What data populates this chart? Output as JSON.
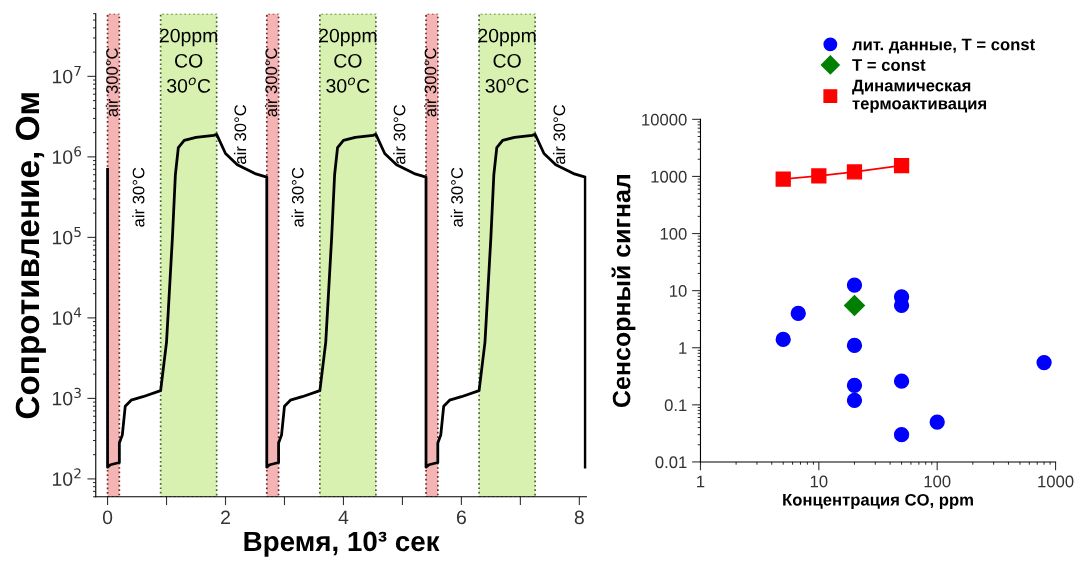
{
  "chart_data": [
    {
      "type": "line",
      "xlabel": "Время, 10³ сек",
      "ylabel": "Сопротивление, Ом",
      "log": "y",
      "grid": false,
      "legend": false,
      "marker": "none",
      "line_style": "solid",
      "xlim": [
        -0.2,
        8.12
      ],
      "xticks": [
        0,
        {
          "value": 1,
          "label": null
        },
        2,
        {
          "value": 3,
          "label": null
        },
        4,
        {
          "value": 5,
          "label": null
        },
        6,
        {
          "value": 7,
          "label": null
        },
        8
      ],
      "ylim": [
        60,
        60000000
      ],
      "yticks": [
        {
          "value": 100,
          "label": "10$^{2}$"
        },
        {
          "value": 1000,
          "label": "10$^{3}$"
        },
        {
          "value": 10000,
          "label": "10$^{4}$"
        },
        {
          "value": 100000,
          "label": "10$^{5}$"
        },
        {
          "value": 1000000,
          "label": "10$^{6}$"
        },
        {
          "value": 10000000,
          "label": "10$^{7}$"
        }
      ],
      "series": [
        {
          "color": "#000000",
          "x": [
            0,
            0,
            0.05,
            0.2,
            0.2,
            0.25,
            0.3,
            0.4,
            0.6,
            0.9,
            1.0,
            1.1,
            1.15,
            1.2,
            1.3,
            1.5,
            1.8,
            1.85,
            2.0,
            2.2,
            2.5,
            2.7,
            2.7,
            2.75,
            2.9,
            2.9,
            2.95,
            3.0,
            3.1,
            3.3,
            3.6,
            3.7,
            3.8,
            3.85,
            3.9,
            4.0,
            4.2,
            4.5,
            4.55,
            4.7,
            4.9,
            5.2,
            5.4,
            5.4,
            5.45,
            5.6,
            5.6,
            5.65,
            5.7,
            5.8,
            6.0,
            6.3,
            6.4,
            6.5,
            6.55,
            6.6,
            6.7,
            6.9,
            7.2,
            7.25,
            7.4,
            7.6,
            7.9,
            8.1,
            8.1
          ],
          "values": [
            700000,
            140,
            150,
            160,
            280,
            350,
            800,
            950,
            1050,
            1250,
            5000,
            100000,
            600000,
            1300000,
            1600000,
            1750000,
            1850000,
            1900000,
            1100000,
            800000,
            620000,
            560000,
            140,
            150,
            160,
            280,
            350,
            800,
            950,
            1050,
            1250,
            5000,
            100000,
            600000,
            1300000,
            1600000,
            1750000,
            1850000,
            1900000,
            1100000,
            800000,
            620000,
            560000,
            140,
            150,
            160,
            280,
            350,
            800,
            950,
            1050,
            1250,
            5000,
            100000,
            600000,
            1300000,
            1600000,
            1750000,
            1850000,
            1900000,
            1100000,
            800000,
            620000,
            560000,
            140
          ]
        }
      ],
      "bands": [
        {
          "axis": "x",
          "from": 0,
          "to": 0.2,
          "label": "air 300°C",
          "color": "#f4b4b4"
        },
        {
          "axis": "x",
          "from": 0.9,
          "to": 1.85,
          "label": "20ppm\nCO\n30$^{o}$C",
          "color": "#d8f0b0"
        },
        {
          "axis": "x",
          "from": 2.7,
          "to": 2.9,
          "label": "air 300°C",
          "color": "#f4b4b4"
        },
        {
          "axis": "x",
          "from": 3.6,
          "to": 4.55,
          "label": "20ppm\nCO\n30$^{o}$C",
          "color": "#d8f0b0"
        },
        {
          "axis": "x",
          "from": 5.4,
          "to": 5.6,
          "label": "air 300°C",
          "color": "#f4b4b4"
        },
        {
          "axis": "x",
          "from": 6.3,
          "to": 7.25,
          "label": "20ppm\nCO\n30$^{o}$C",
          "color": "#d8f0b0"
        }
      ],
      "annotations": [
        "air 30°C",
        "air 30°C",
        "air 30°C",
        "air 30°C",
        "air 30°C",
        "air 30°C"
      ]
    },
    {
      "type": "scatter",
      "xlabel": "Концентрация CO, ppm",
      "ylabel": "Сенсорный сигнал",
      "log": "xy",
      "grid": false,
      "legend": "top",
      "xlim": [
        1,
        1000
      ],
      "xticks": [
        1,
        10,
        100,
        1000
      ],
      "ylim": [
        0.01,
        10000
      ],
      "yticks": [
        0.01,
        0.1,
        1,
        10,
        100,
        1000,
        10000
      ],
      "series": [
        {
          "name": "лит. данные, T = const",
          "color": "#0000ff",
          "marker": "circle",
          "x": [
            5,
            6.7,
            20,
            20,
            20,
            20,
            50,
            50,
            50,
            50,
            100,
            800
          ],
          "values": [
            1.4,
            4,
            12.5,
            1.1,
            0.22,
            0.12,
            7.8,
            5.5,
            0.26,
            0.03,
            0.05,
            0.55
          ]
        },
        {
          "name": "T = const",
          "color": "#008000",
          "marker": "diamond",
          "x": [
            20
          ],
          "values": [
            5.5
          ]
        },
        {
          "name": "Динамическая\nтермоактивация",
          "type": "line",
          "color": "#ff0000",
          "marker": "square",
          "line_style": "solid",
          "x": [
            5,
            10,
            20,
            50
          ],
          "values": [
            900,
            1020,
            1200,
            1550
          ]
        }
      ]
    }
  ]
}
